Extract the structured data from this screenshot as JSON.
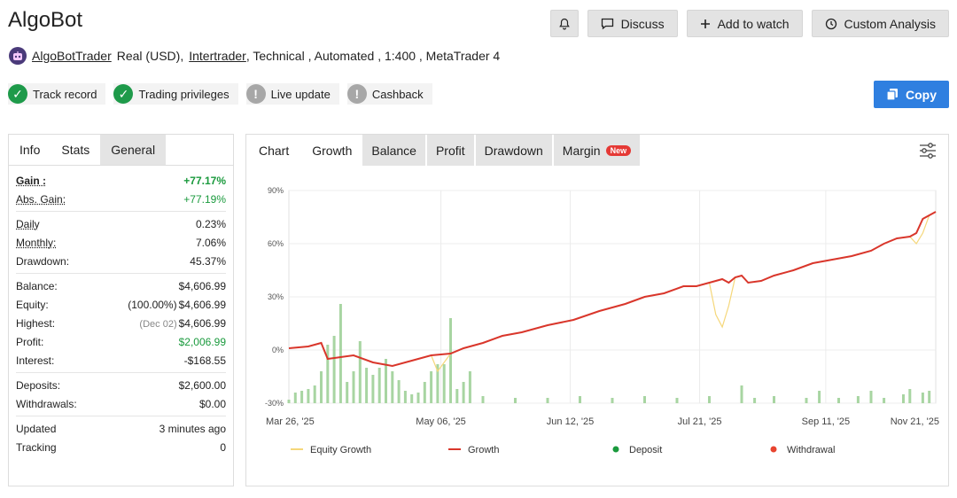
{
  "header": {
    "title": "AlgoBot"
  },
  "actions": {
    "discuss": "Discuss",
    "watch": "Add to watch",
    "analysis": "Custom Analysis"
  },
  "account": {
    "user": "AlgoBotTrader",
    "type": "Real (USD),",
    "broker": "Intertrader",
    "rest": ", Technical , Automated , 1:400 , MetaTrader 4"
  },
  "badges": [
    "Track record",
    "Trading privileges",
    "Live update",
    "Cashback"
  ],
  "copy_label": "Copy",
  "left_tabs": [
    "Info",
    "Stats",
    "General"
  ],
  "stats": {
    "gain_l": "Gain :",
    "gain_v": "+77.17%",
    "abs_l": "Abs. Gain:",
    "abs_v": "+77.19%",
    "daily_l": "Daily",
    "daily_v": "0.23%",
    "monthly_l": "Monthly:",
    "monthly_v": "7.06%",
    "dd_l": "Drawdown:",
    "dd_v": "45.37%",
    "bal_l": "Balance:",
    "bal_v": "$4,606.99",
    "eq_l": "Equity:",
    "eq_sub": "(100.00%)",
    "eq_v": "$4,606.99",
    "hi_l": "Highest:",
    "hi_sub": "(Dec 02)",
    "hi_v": "$4,606.99",
    "pr_l": "Profit:",
    "pr_v": "$2,006.99",
    "int_l": "Interest:",
    "int_v": "-$168.55",
    "dep_l": "Deposits:",
    "dep_v": "$2,600.00",
    "wd_l": "Withdrawals:",
    "wd_v": "$0.00",
    "up_l": "Updated",
    "up_v": "3 minutes ago",
    "tr_l": "Tracking",
    "tr_v": "0"
  },
  "chart_tabs": {
    "chart": "Chart",
    "growth": "Growth",
    "balance": "Balance",
    "profit": "Profit",
    "drawdown": "Drawdown",
    "margin": "Margin",
    "new": "New"
  },
  "colors": {
    "equity": "#f5d77a",
    "growth": "#d9362b",
    "deposit": "#1a9a3d",
    "withdrawal": "#e8442f",
    "bars": "#a8d5a2"
  },
  "chart_data": {
    "type": "line",
    "x_ticks": [
      "Mar 26, '25",
      "May 06, '25",
      "Jun 12, '25",
      "Jul 21, '25",
      "Sep 11, '25",
      "Nov 21, '25"
    ],
    "y_ticks": [
      "90%",
      "60%",
      "30%",
      "0%",
      "-30%"
    ],
    "ylim": [
      -30,
      90
    ],
    "legend": [
      "Equity Growth",
      "Growth",
      "Deposit",
      "Withdrawal"
    ],
    "growth_points": [
      [
        0,
        1
      ],
      [
        3,
        2
      ],
      [
        5,
        4
      ],
      [
        6,
        -5
      ],
      [
        8,
        -4
      ],
      [
        10,
        -3
      ],
      [
        13,
        -7
      ],
      [
        16,
        -9
      ],
      [
        19,
        -6
      ],
      [
        22,
        -3
      ],
      [
        25,
        -2
      ],
      [
        27,
        1
      ],
      [
        30,
        4
      ],
      [
        33,
        8
      ],
      [
        36,
        10
      ],
      [
        40,
        14
      ],
      [
        44,
        17
      ],
      [
        48,
        22
      ],
      [
        52,
        26
      ],
      [
        55,
        30
      ],
      [
        58,
        32
      ],
      [
        61,
        36
      ],
      [
        63,
        36
      ],
      [
        65,
        38
      ],
      [
        67,
        40
      ],
      [
        68,
        38
      ],
      [
        69,
        41
      ],
      [
        70,
        42
      ],
      [
        71,
        38
      ],
      [
        73,
        39
      ],
      [
        75,
        42
      ],
      [
        78,
        45
      ],
      [
        81,
        49
      ],
      [
        84,
        51
      ],
      [
        87,
        53
      ],
      [
        90,
        56
      ],
      [
        92,
        60
      ],
      [
        94,
        63
      ],
      [
        96,
        64
      ],
      [
        97,
        66
      ],
      [
        98,
        74
      ],
      [
        99,
        76
      ],
      [
        100,
        78
      ]
    ],
    "equity_points": [
      [
        0,
        1
      ],
      [
        3,
        2
      ],
      [
        5,
        4
      ],
      [
        6,
        -5
      ],
      [
        8,
        -4
      ],
      [
        10,
        -3
      ],
      [
        13,
        -7
      ],
      [
        16,
        -9
      ],
      [
        19,
        -6
      ],
      [
        22,
        -3
      ],
      [
        23,
        -12
      ],
      [
        25,
        -2
      ],
      [
        27,
        1
      ],
      [
        30,
        4
      ],
      [
        33,
        8
      ],
      [
        36,
        10
      ],
      [
        40,
        14
      ],
      [
        44,
        17
      ],
      [
        48,
        22
      ],
      [
        52,
        26
      ],
      [
        55,
        30
      ],
      [
        58,
        32
      ],
      [
        61,
        36
      ],
      [
        63,
        36
      ],
      [
        65,
        38
      ],
      [
        66,
        20
      ],
      [
        67,
        13
      ],
      [
        68,
        25
      ],
      [
        69,
        41
      ],
      [
        70,
        42
      ],
      [
        71,
        38
      ],
      [
        73,
        39
      ],
      [
        75,
        42
      ],
      [
        78,
        45
      ],
      [
        81,
        49
      ],
      [
        84,
        51
      ],
      [
        87,
        53
      ],
      [
        90,
        56
      ],
      [
        92,
        60
      ],
      [
        94,
        63
      ],
      [
        96,
        64
      ],
      [
        97,
        60
      ],
      [
        98,
        66
      ],
      [
        99,
        76
      ],
      [
        100,
        78
      ]
    ],
    "bars": [
      [
        0,
        -28
      ],
      [
        1,
        -24
      ],
      [
        2,
        -23
      ],
      [
        3,
        -22
      ],
      [
        4,
        -20
      ],
      [
        5,
        -12
      ],
      [
        6,
        3
      ],
      [
        7,
        8
      ],
      [
        8,
        26
      ],
      [
        9,
        -18
      ],
      [
        10,
        -12
      ],
      [
        11,
        5
      ],
      [
        12,
        -10
      ],
      [
        13,
        -14
      ],
      [
        14,
        -10
      ],
      [
        15,
        -5
      ],
      [
        16,
        -12
      ],
      [
        17,
        -17
      ],
      [
        18,
        -23
      ],
      [
        19,
        -25
      ],
      [
        20,
        -24
      ],
      [
        21,
        -18
      ],
      [
        22,
        -12
      ],
      [
        23,
        -8
      ],
      [
        24,
        -8
      ],
      [
        25,
        18
      ],
      [
        26,
        -22
      ],
      [
        27,
        -18
      ],
      [
        28,
        -12
      ],
      [
        30,
        -26
      ],
      [
        35,
        -27
      ],
      [
        40,
        -27
      ],
      [
        45,
        -26
      ],
      [
        50,
        -27
      ],
      [
        55,
        -26
      ],
      [
        60,
        -27
      ],
      [
        65,
        -26
      ],
      [
        70,
        -20
      ],
      [
        72,
        -27
      ],
      [
        75,
        -26
      ],
      [
        80,
        -27
      ],
      [
        82,
        -23
      ],
      [
        85,
        -27
      ],
      [
        88,
        -26
      ],
      [
        90,
        -23
      ],
      [
        92,
        -27
      ],
      [
        95,
        -25
      ],
      [
        96,
        -22
      ],
      [
        98,
        -24
      ],
      [
        99,
        -23
      ]
    ]
  }
}
